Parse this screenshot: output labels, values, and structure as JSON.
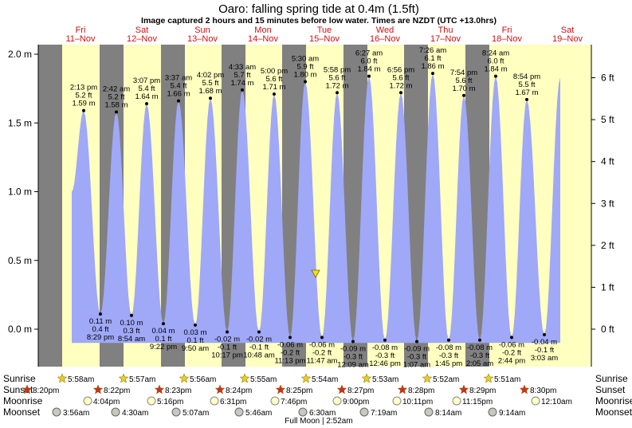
{
  "header": {
    "title": "Oaro: falling  spring tide at 0.4m (1.5ft)",
    "subtitle": "Image captured 2 hours and 15 minutes before low water. Times are NZDT (UTC +13.0hrs)"
  },
  "days": [
    {
      "name": "Fri",
      "date": "11–Nov"
    },
    {
      "name": "Sat",
      "date": "12–Nov"
    },
    {
      "name": "Sun",
      "date": "13–Nov"
    },
    {
      "name": "Mon",
      "date": "14–Nov"
    },
    {
      "name": "Tue",
      "date": "15–Nov"
    },
    {
      "name": "Wed",
      "date": "16–Nov"
    },
    {
      "name": "Thu",
      "date": "17–Nov"
    },
    {
      "name": "Fri",
      "date": "18–Nov"
    },
    {
      "name": "Sat",
      "date": "19–Nov"
    }
  ],
  "chart_data": {
    "type": "area",
    "y_m_ticks": [
      "0.0 m",
      "0.5 m",
      "1.0 m",
      "1.5 m",
      "2.0 m"
    ],
    "y_ft_ticks": [
      "0 ft",
      "1 ft",
      "2 ft",
      "3 ft",
      "4 ft",
      "5 ft",
      "6 ft"
    ],
    "ylim_m": [
      -0.2,
      2.07
    ],
    "current_level_m": 0.4,
    "points": [
      {
        "t": "2:13 pm",
        "m": "1.59 m",
        "ft": "5.2 ft",
        "h": 1.59,
        "hi": true
      },
      {
        "t": "8:29 pm",
        "m": "0.11 m",
        "ft": "0.4 ft",
        "h": 0.11,
        "hi": false
      },
      {
        "t": "2:42 am",
        "m": "1.58 m",
        "ft": "5.2 ft",
        "h": 1.58,
        "hi": true
      },
      {
        "t": "8:54 am",
        "m": "0.10 m",
        "ft": "0.3 ft",
        "h": 0.1,
        "hi": false
      },
      {
        "t": "3:07 pm",
        "m": "1.64 m",
        "ft": "5.4 ft",
        "h": 1.64,
        "hi": true
      },
      {
        "t": "9:22 pm",
        "m": "0.04 m",
        "ft": "0.1 ft",
        "h": 0.04,
        "hi": false
      },
      {
        "t": "3:37 am",
        "m": "1.66 m",
        "ft": "5.4 ft",
        "h": 1.66,
        "hi": true
      },
      {
        "t": "9:50 am",
        "m": "0.03 m",
        "ft": "0.1 ft",
        "h": 0.03,
        "hi": false
      },
      {
        "t": "4:02 pm",
        "m": "1.68 m",
        "ft": "5.5 ft",
        "h": 1.68,
        "hi": true
      },
      {
        "t": "10:17 pm",
        "m": "-0.02 m",
        "ft": "-0.1 ft",
        "h": -0.02,
        "hi": false
      },
      {
        "t": "4:33 am",
        "m": "1.74 m",
        "ft": "5.7 ft",
        "h": 1.74,
        "hi": true
      },
      {
        "t": "10:48 am",
        "m": "-0.02 m",
        "ft": "-0.1 ft",
        "h": -0.02,
        "hi": false
      },
      {
        "t": "5:00 pm",
        "m": "1.71 m",
        "ft": "5.6 ft",
        "h": 1.71,
        "hi": true
      },
      {
        "t": "11:13 pm",
        "m": "-0.06 m",
        "ft": "-0.2 ft",
        "h": -0.06,
        "hi": false
      },
      {
        "t": "5:30 am",
        "m": "1.80 m",
        "ft": "5.9 ft",
        "h": 1.8,
        "hi": true
      },
      {
        "t": "11:47 am",
        "m": "-0.06 m",
        "ft": "-0.2 ft",
        "h": -0.06,
        "hi": false
      },
      {
        "t": "5:58 pm",
        "m": "1.72 m",
        "ft": "5.6 ft",
        "h": 1.72,
        "hi": true
      },
      {
        "t": "12:09 am",
        "m": "-0.09 m",
        "ft": "-0.3 ft",
        "h": -0.09,
        "hi": false
      },
      {
        "t": "6:27 am",
        "m": "1.84 m",
        "ft": "6.0 ft",
        "h": 1.84,
        "hi": true
      },
      {
        "t": "12:46 pm",
        "m": "-0.08 m",
        "ft": "-0.3 ft",
        "h": -0.08,
        "hi": false
      },
      {
        "t": "6:56 pm",
        "m": "1.72 m",
        "ft": "5.6 ft",
        "h": 1.72,
        "hi": true
      },
      {
        "t": "1:07 am",
        "m": "-0.09 m",
        "ft": "-0.3 ft",
        "h": -0.09,
        "hi": false
      },
      {
        "t": "7:26 am",
        "m": "1.86 m",
        "ft": "6.1 ft",
        "h": 1.86,
        "hi": true
      },
      {
        "t": "1:45 pm",
        "m": "-0.08 m",
        "ft": "-0.3 ft",
        "h": -0.08,
        "hi": false
      },
      {
        "t": "7:54 pm",
        "m": "1.70 m",
        "ft": "5.6 ft",
        "h": 1.7,
        "hi": true
      },
      {
        "t": "2:05 am",
        "m": "-0.08 m",
        "ft": "-0.3 ft",
        "h": -0.08,
        "hi": false
      },
      {
        "t": "8:24 am",
        "m": "1.84 m",
        "ft": "6.0 ft",
        "h": 1.84,
        "hi": true
      },
      {
        "t": "2:44 pm",
        "m": "-0.06 m",
        "ft": "-0.2 ft",
        "h": -0.06,
        "hi": false
      },
      {
        "t": "8:54 pm",
        "m": "1.67 m",
        "ft": "5.5 ft",
        "h": 1.67,
        "hi": true
      },
      {
        "t": "3:03 am",
        "m": "-0.04 m",
        "ft": "-0.1 ft",
        "h": -0.04,
        "hi": false
      }
    ]
  },
  "rows": {
    "sunrise_label": "Sunrise",
    "sunset_label": "Sunset",
    "moonrise_label": "Moonrise",
    "moonset_label": "Moonset",
    "sunrise": [
      "5:58am",
      "5:57am",
      "5:56am",
      "5:55am",
      "5:54am",
      "5:53am",
      "5:52am",
      "5:51am"
    ],
    "sunset": [
      "8:20pm",
      "8:22pm",
      "8:23pm",
      "8:24pm",
      "8:25pm",
      "8:27pm",
      "8:28pm",
      "8:29pm",
      "8:30pm"
    ],
    "moonrise": [
      "4:04pm",
      "5:16pm",
      "6:31pm",
      "7:46pm",
      "9:00pm",
      "10:11pm",
      "11:15pm",
      "12:10am"
    ],
    "moonset": [
      "3:56am",
      "4:30am",
      "5:07am",
      "5:46am",
      "6:30am",
      "7:19am",
      "8:14am",
      "9:14am"
    ],
    "moon_phase": "Full Moon | 2:52am"
  },
  "colors": {
    "night": "#808080",
    "day": "#ffffc0",
    "water": "#a0a8f8",
    "day_label": "#d01010",
    "sun": "#e8d020",
    "sunset_star": "#d03020"
  }
}
